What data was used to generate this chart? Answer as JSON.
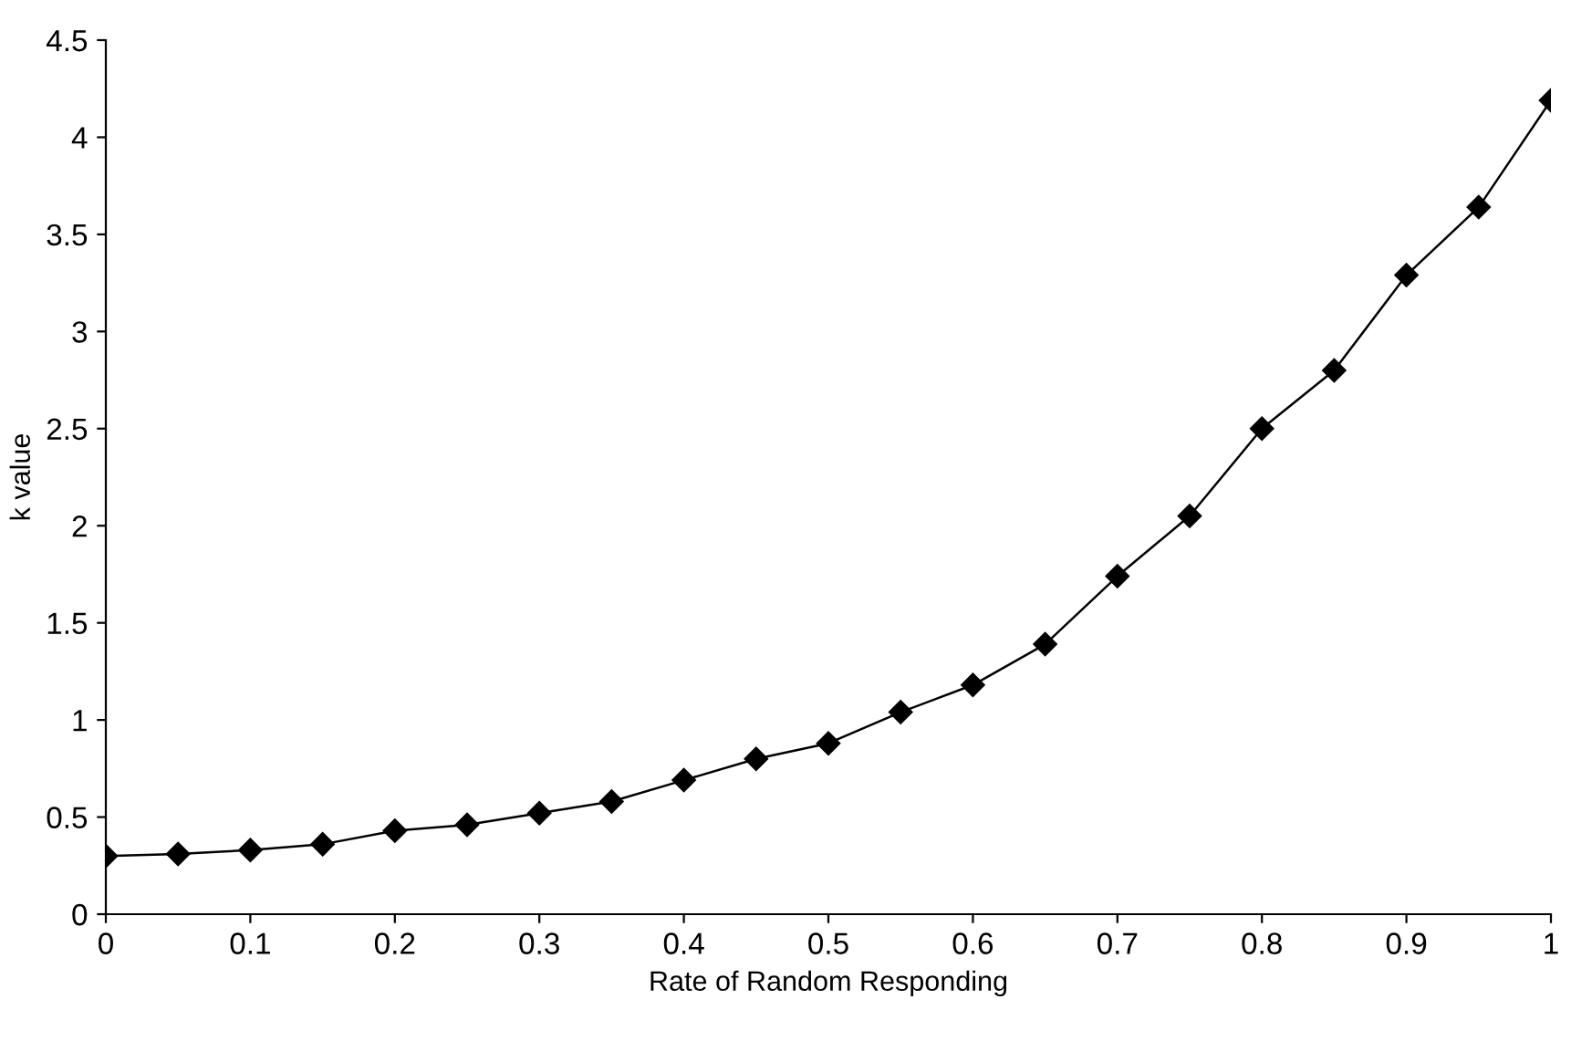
{
  "chart_data": {
    "type": "line",
    "xlabel": "Rate of Random Responding",
    "ylabel": "k value",
    "x": [
      0,
      0.05,
      0.1,
      0.15,
      0.2,
      0.25,
      0.3,
      0.35,
      0.4,
      0.45,
      0.5,
      0.55,
      0.6,
      0.65,
      0.7,
      0.75,
      0.8,
      0.85,
      0.9,
      0.95,
      1
    ],
    "series": [
      {
        "color": "#000000",
        "values": [
          0.3,
          0.31,
          0.33,
          0.36,
          0.43,
          0.46,
          0.52,
          0.58,
          0.69,
          0.8,
          0.88,
          1.04,
          1.18,
          1.39,
          1.74,
          2.05,
          2.5,
          2.8,
          3.29,
          3.64,
          4.19
        ]
      }
    ],
    "xlim": [
      0,
      1
    ],
    "xticks": [
      0,
      0.1,
      0.2,
      0.3,
      0.4,
      0.5,
      0.6,
      0.7,
      0.8,
      0.9,
      1
    ],
    "ylim": [
      0,
      4.5
    ],
    "yticks": [
      0,
      0.5,
      1,
      1.5,
      2,
      2.5,
      3,
      3.5,
      4,
      4.5
    ],
    "marker": "diamond",
    "line_style": "solid",
    "grid": false,
    "legend": false
  }
}
